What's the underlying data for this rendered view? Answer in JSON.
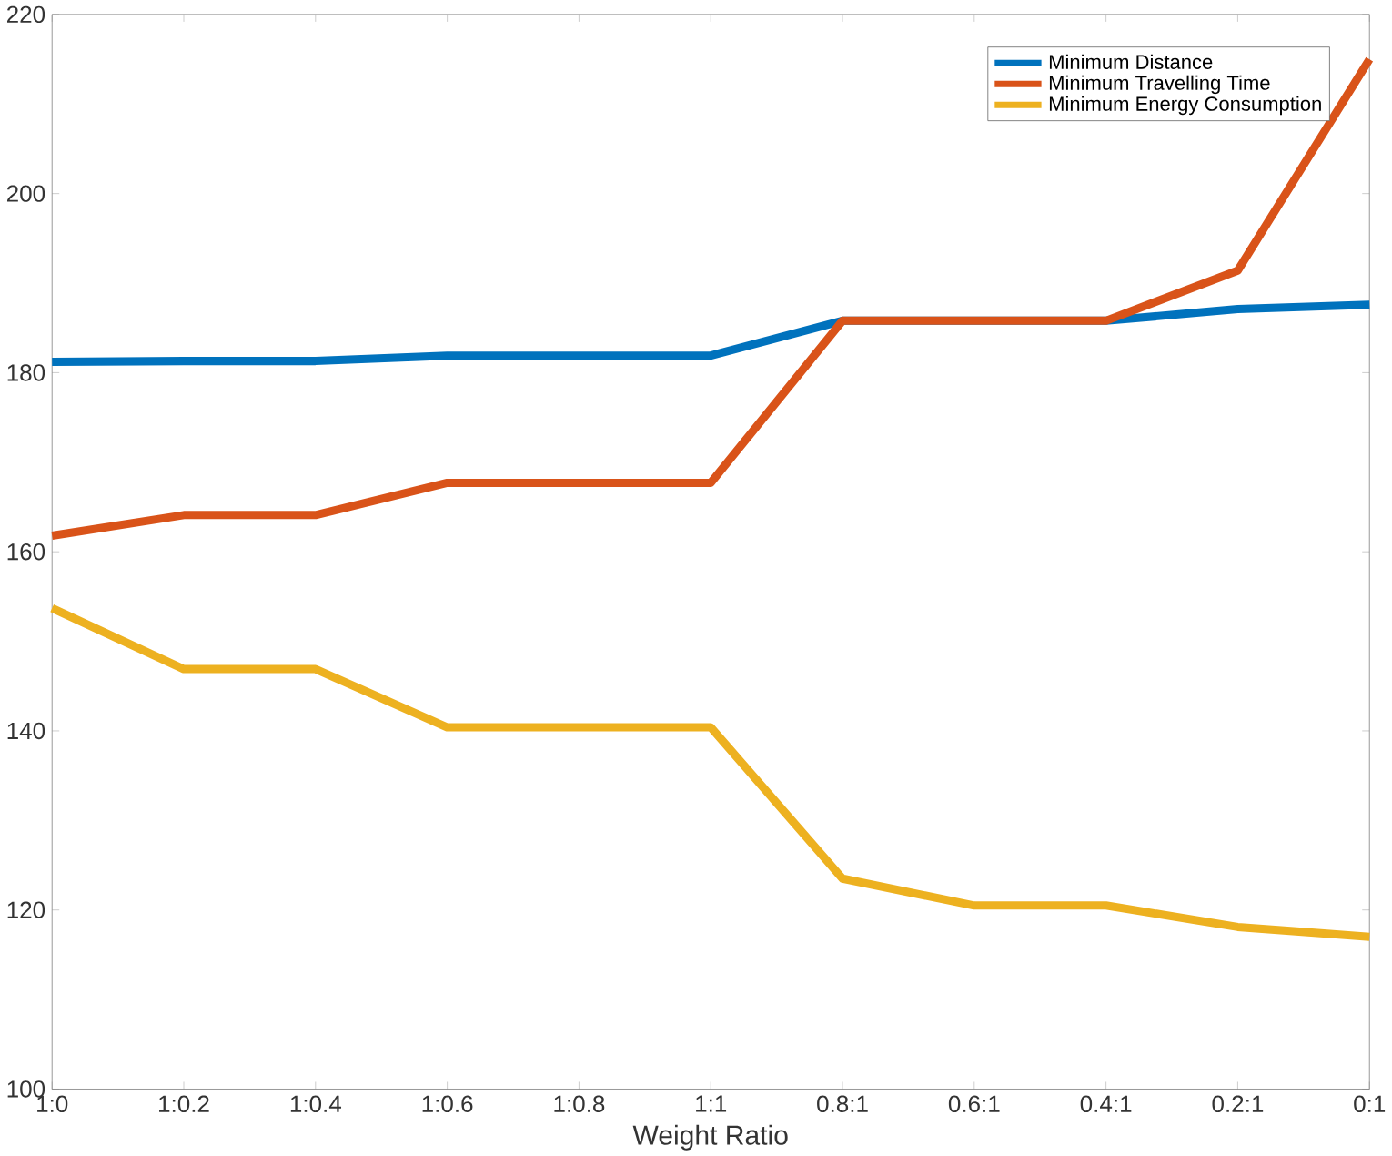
{
  "chart_data": {
    "type": "line",
    "xlabel": "Weight Ratio",
    "categories": [
      "1:0",
      "1:0.2",
      "1:0.4",
      "1:0.6",
      "1:0.8",
      "1:1",
      "0.8:1",
      "0.6:1",
      "0.4:1",
      "0.2:1",
      "0:1"
    ],
    "series": [
      {
        "name": "Minimum Distance",
        "color": "#0072bd",
        "values": [
          181.2,
          181.3,
          181.3,
          181.9,
          181.9,
          181.9,
          185.8,
          null,
          185.8,
          187.1,
          187.6
        ]
      },
      {
        "name": "Minimum Travelling Time",
        "color": "#d95319",
        "values": [
          161.8,
          164.1,
          164.1,
          167.7,
          167.7,
          167.7,
          185.8,
          185.8,
          185.8,
          191.4,
          215
        ]
      },
      {
        "name": "Minimum Energy Consumption",
        "color": "#edb120",
        "values": [
          153.7,
          146.9,
          146.9,
          140.4,
          140.4,
          140.4,
          123.5,
          120.5,
          120.5,
          118.1,
          117
        ]
      }
    ],
    "ylim": [
      100,
      220
    ],
    "yticks": [
      100,
      120,
      140,
      160,
      180,
      200,
      220
    ],
    "grid": false,
    "legend": "top right",
    "line_style": "solid",
    "marker": "none"
  }
}
